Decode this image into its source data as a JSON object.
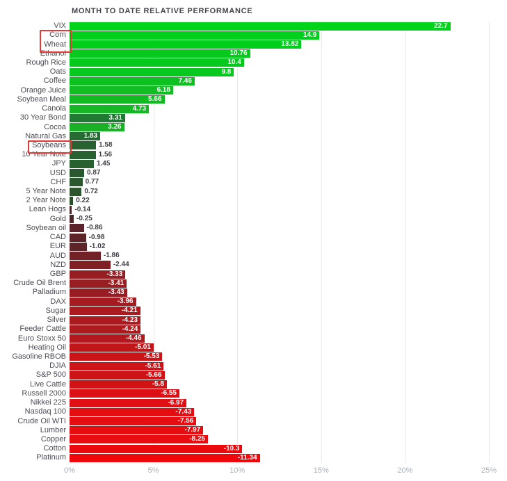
{
  "chart_data": {
    "type": "bar",
    "orientation": "horizontal",
    "title": "MONTH TO DATE RELATIVE PERFORMANCE",
    "xlabel": "",
    "ylabel": "",
    "x_ticks": [
      "0%",
      "5%",
      "10%",
      "15%",
      "20%",
      "25%"
    ],
    "x_tick_values": [
      0,
      5,
      10,
      15,
      20,
      25
    ],
    "x_range": [
      0,
      25
    ],
    "grid": true,
    "legend": false,
    "items": [
      {
        "label": "VIX",
        "value": 22.7,
        "color": "#00d41a"
      },
      {
        "label": "Corn",
        "value": 14.9,
        "color": "#00cf1b"
      },
      {
        "label": "Wheat",
        "value": 13.82,
        "color": "#01ce1b"
      },
      {
        "label": "Ethanol",
        "value": 10.76,
        "color": "#05ca1d"
      },
      {
        "label": "Rough Rice",
        "value": 10.4,
        "color": "#06c91d"
      },
      {
        "label": "Oats",
        "value": 9.8,
        "color": "#07c81e"
      },
      {
        "label": "Coffee",
        "value": 7.46,
        "color": "#0dc220"
      },
      {
        "label": "Orange Juice",
        "value": 6.18,
        "color": "#11bd22"
      },
      {
        "label": "Soybean Meal",
        "value": 5.66,
        "color": "#13bb23"
      },
      {
        "label": "Canola",
        "value": 4.73,
        "color": "#16b724"
      },
      {
        "label": "30 Year Bond",
        "value": 3.31,
        "color": "#207a33"
      },
      {
        "label": "Cocoa",
        "value": 3.26,
        "color": "#1bb126"
      },
      {
        "label": "Natural Gas",
        "value": 1.83,
        "color": "#266b33"
      },
      {
        "label": "Soybeans",
        "value": 1.58,
        "color": "#286231"
      },
      {
        "label": "10 Year Note",
        "value": 1.56,
        "color": "#286231"
      },
      {
        "label": "JPY",
        "value": 1.45,
        "color": "#286030"
      },
      {
        "label": "USD",
        "value": 0.87,
        "color": "#2a582e"
      },
      {
        "label": "CHF",
        "value": 0.77,
        "color": "#2a572e"
      },
      {
        "label": "5 Year Note",
        "value": 0.72,
        "color": "#2b562e"
      },
      {
        "label": "2 Year Note",
        "value": 0.22,
        "color": "#2c4f2c"
      },
      {
        "label": "Lean Hogs",
        "value": -0.14,
        "color": "#4a262b"
      },
      {
        "label": "Gold",
        "value": -0.25,
        "color": "#4c262b"
      },
      {
        "label": "Soybean oil",
        "value": -0.86,
        "color": "#5a242a"
      },
      {
        "label": "CAD",
        "value": -0.98,
        "color": "#5c2429"
      },
      {
        "label": "EUR",
        "value": -1.02,
        "color": "#5d2429"
      },
      {
        "label": "AUD",
        "value": -1.86,
        "color": "#722127"
      },
      {
        "label": "NZD",
        "value": -2.44,
        "color": "#7f2025"
      },
      {
        "label": "GBP",
        "value": -3.33,
        "color": "#961e22"
      },
      {
        "label": "Crude Oil Brent",
        "value": -3.41,
        "color": "#971e22"
      },
      {
        "label": "Palladium",
        "value": -3.43,
        "color": "#981d22"
      },
      {
        "label": "DAX",
        "value": -3.96,
        "color": "#a51b1f"
      },
      {
        "label": "Sugar",
        "value": -4.21,
        "color": "#ab1a1e"
      },
      {
        "label": "Silver",
        "value": -4.23,
        "color": "#ab1a1e"
      },
      {
        "label": "Feeder Cattle",
        "value": -4.24,
        "color": "#ac1a1e"
      },
      {
        "label": "Euro Stoxx 50",
        "value": -4.46,
        "color": "#b2181d"
      },
      {
        "label": "Heating Oil",
        "value": -5.01,
        "color": "#c0161a"
      },
      {
        "label": "Gasoline RBOB",
        "value": -5.53,
        "color": "#cb1418"
      },
      {
        "label": "DJIA",
        "value": -5.61,
        "color": "#cd1418"
      },
      {
        "label": "S&P 500",
        "value": -5.66,
        "color": "#ce1317"
      },
      {
        "label": "Live Cattle",
        "value": -5.8,
        "color": "#d11316"
      },
      {
        "label": "Russell 2000",
        "value": -6.55,
        "color": "#dc1014"
      },
      {
        "label": "Nikkei 225",
        "value": -6.97,
        "color": "#e00f13"
      },
      {
        "label": "Nasdaq 100",
        "value": -7.43,
        "color": "#e40d11"
      },
      {
        "label": "Crude Oil WTI",
        "value": -7.56,
        "color": "#e50d11"
      },
      {
        "label": "Lumber",
        "value": -7.97,
        "color": "#e70c10"
      },
      {
        "label": "Copper",
        "value": -8.25,
        "color": "#e80b0f"
      },
      {
        "label": "Cotton",
        "value": -10.3,
        "color": "#ec090d"
      },
      {
        "label": "Platinum",
        "value": -11.34,
        "color": "#ee080c"
      }
    ],
    "highlighted_labels": [
      [
        "Corn",
        "Wheat"
      ],
      [
        "Soybeans"
      ]
    ]
  },
  "colors": {
    "background": "#ffffff",
    "title_text": "#43434a",
    "category_text": "#4b4b55",
    "value_inside_text": "#ffffff",
    "value_outside_text": "#3f3f46",
    "grid": "#e9e9e9",
    "axis_text": "#a8b1bc",
    "highlight_border": "#e53935",
    "positive_bright": "#00d41a",
    "positive_dark": "#2a572e",
    "negative_dark": "#4a262b",
    "negative_bright": "#ee080c"
  }
}
